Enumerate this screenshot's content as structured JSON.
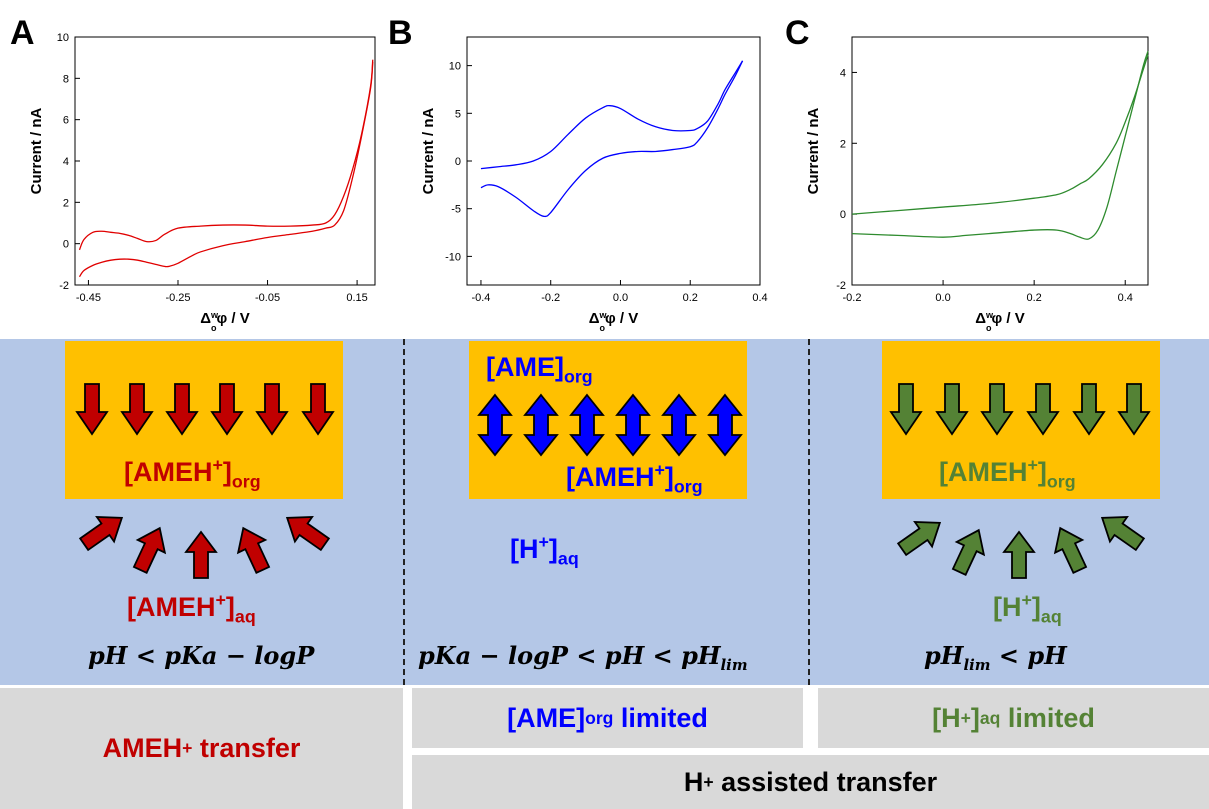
{
  "panels": {
    "a": "A",
    "b": "B",
    "c": "C"
  },
  "colors": {
    "red": "#c00000",
    "blue": "#0000ff",
    "green": "#548235",
    "orange": "#ffc000",
    "lightblue": "#b4c7e7",
    "grey": "#d9d9d9"
  },
  "chart_data": [
    {
      "type": "line",
      "panel": "A",
      "color": "#e00000",
      "ylabel": "Current / nA",
      "xlabel": "Δ_o^w φ / V",
      "xlim": [
        -0.48,
        0.19
      ],
      "ylim": [
        -2,
        10
      ],
      "xticks": [
        -0.45,
        -0.25,
        -0.05,
        0.15
      ],
      "yticks": [
        -2,
        0,
        2,
        4,
        6,
        8,
        10
      ],
      "series": [
        {
          "x": [
            -0.47,
            -0.46,
            -0.44,
            -0.42,
            -0.4,
            -0.38,
            -0.36,
            -0.34,
            -0.32,
            -0.3,
            -0.28,
            -0.25,
            -0.2,
            -0.15,
            -0.1,
            -0.05,
            0.0,
            0.05,
            0.08,
            0.1,
            0.12,
            0.14,
            0.16,
            0.18,
            0.185
          ],
          "y": [
            -0.3,
            0.2,
            0.55,
            0.6,
            0.55,
            0.5,
            0.4,
            0.25,
            0.1,
            0.15,
            0.45,
            0.75,
            0.85,
            0.9,
            0.9,
            0.85,
            0.85,
            0.9,
            1.0,
            1.4,
            2.3,
            3.6,
            5.3,
            7.6,
            8.9
          ]
        },
        {
          "x": [
            -0.47,
            -0.46,
            -0.44,
            -0.42,
            -0.4,
            -0.38,
            -0.36,
            -0.34,
            -0.32,
            -0.3,
            -0.28,
            -0.27,
            -0.25,
            -0.22,
            -0.2,
            -0.15,
            -0.1,
            -0.05,
            0.0,
            0.05,
            0.08,
            0.1,
            0.12,
            0.14,
            0.16,
            0.18,
            0.185
          ],
          "y": [
            -1.6,
            -1.3,
            -1.05,
            -0.9,
            -0.8,
            -0.75,
            -0.75,
            -0.8,
            -0.9,
            -1.0,
            -1.1,
            -1.1,
            -0.95,
            -0.6,
            -0.4,
            -0.1,
            0.1,
            0.3,
            0.45,
            0.6,
            0.75,
            0.9,
            1.6,
            3.2,
            5.2,
            7.5,
            8.8
          ]
        }
      ]
    },
    {
      "type": "line",
      "panel": "B",
      "color": "#0000ff",
      "ylabel": "Current / nA",
      "xlabel": "Δ_o^w φ / V",
      "xlim": [
        -0.44,
        0.4
      ],
      "ylim": [
        -13,
        13
      ],
      "xticks": [
        -0.4,
        -0.2,
        0.0,
        0.2,
        0.4
      ],
      "yticks": [
        -10,
        -5,
        0,
        5,
        10
      ],
      "series": [
        {
          "x": [
            -0.4,
            -0.35,
            -0.3,
            -0.25,
            -0.2,
            -0.15,
            -0.1,
            -0.05,
            -0.03,
            0.0,
            0.05,
            0.1,
            0.15,
            0.2,
            0.22,
            0.25,
            0.28,
            0.3,
            0.33,
            0.35
          ],
          "y": [
            -0.8,
            -0.6,
            -0.4,
            0.0,
            1.0,
            2.8,
            4.5,
            5.6,
            5.8,
            5.5,
            4.4,
            3.6,
            3.2,
            3.2,
            3.4,
            4.2,
            6.0,
            7.5,
            9.3,
            10.5
          ]
        },
        {
          "x": [
            -0.4,
            -0.38,
            -0.35,
            -0.3,
            -0.25,
            -0.22,
            -0.2,
            -0.15,
            -0.1,
            -0.05,
            0.0,
            0.05,
            0.1,
            0.15,
            0.2,
            0.22,
            0.25,
            0.28,
            0.3,
            0.33,
            0.35
          ],
          "y": [
            -2.8,
            -2.5,
            -2.7,
            -3.8,
            -5.2,
            -5.8,
            -5.4,
            -3.0,
            -1.0,
            0.3,
            0.8,
            1.0,
            1.0,
            1.2,
            1.5,
            2.0,
            3.5,
            5.5,
            7.0,
            9.0,
            10.5
          ]
        }
      ]
    },
    {
      "type": "line",
      "panel": "C",
      "color": "#2e8b2e",
      "ylabel": "Current / nA",
      "xlabel": "Δ_o^w φ / V",
      "xlim": [
        -0.2,
        0.45
      ],
      "ylim": [
        -2,
        5
      ],
      "xticks": [
        -0.2,
        0.0,
        0.2,
        0.4
      ],
      "yticks": [
        -2,
        0,
        2,
        4
      ],
      "series": [
        {
          "x": [
            -0.2,
            -0.1,
            0.0,
            0.1,
            0.2,
            0.25,
            0.28,
            0.3,
            0.32,
            0.35,
            0.38,
            0.4,
            0.42,
            0.44,
            0.45
          ],
          "y": [
            0.0,
            0.1,
            0.2,
            0.3,
            0.45,
            0.55,
            0.7,
            0.85,
            1.0,
            1.4,
            2.0,
            2.6,
            3.3,
            4.1,
            4.5
          ]
        },
        {
          "x": [
            -0.2,
            -0.1,
            0.0,
            0.05,
            0.1,
            0.2,
            0.25,
            0.28,
            0.3,
            0.32,
            0.34,
            0.36,
            0.38,
            0.4,
            0.42,
            0.44,
            0.45
          ],
          "y": [
            -0.55,
            -0.6,
            -0.65,
            -0.6,
            -0.55,
            -0.45,
            -0.45,
            -0.55,
            -0.65,
            -0.7,
            -0.45,
            0.2,
            1.2,
            2.2,
            3.2,
            4.2,
            4.6
          ]
        }
      ]
    }
  ],
  "scheme": {
    "a": {
      "org": [
        "[AMEH",
        "+",
        "]",
        "org"
      ],
      "aq": [
        "[AMEH",
        "+",
        "]",
        "aq"
      ],
      "eq": "pH < pKa − logP"
    },
    "b": {
      "top": [
        "[AME]",
        "org"
      ],
      "org": [
        "[AMEH",
        "+",
        "]",
        "org"
      ],
      "aq": [
        "[H",
        "+",
        "]",
        "aq"
      ],
      "eq_pre": "pKa − logP < pH <  pH",
      "eq_sub": "lim"
    },
    "c": {
      "org": [
        "[AMEH",
        "+",
        "]",
        "org"
      ],
      "aq": [
        "[H",
        "+",
        "]",
        "aq"
      ],
      "eq_pre": "pH",
      "eq_sub": "lim",
      "eq_post": " < pH"
    }
  },
  "bottom": {
    "left": [
      "AMEH",
      "+",
      " transfer"
    ],
    "mid": [
      "[AME]",
      "org",
      " limited"
    ],
    "right": [
      "[H",
      "+",
      "]",
      "aq",
      " limited"
    ],
    "wide": [
      "H",
      "+",
      " assisted transfer"
    ]
  }
}
